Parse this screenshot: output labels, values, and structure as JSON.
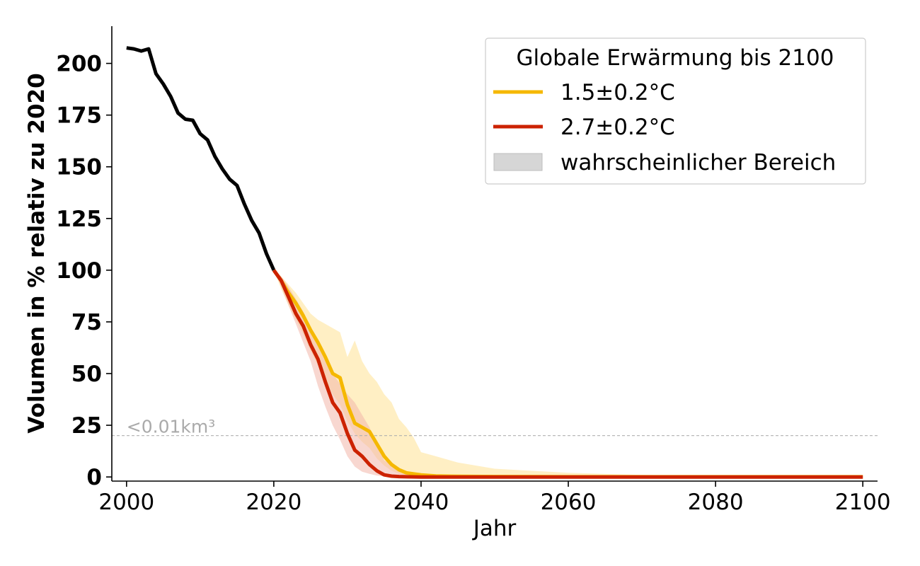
{
  "chart_data": {
    "type": "line",
    "xlabel": "Jahr",
    "ylabel": "Volumen in % relativ zu 2020",
    "xlim": [
      1998,
      2102
    ],
    "ylim": [
      -2,
      218
    ],
    "xticks": [
      2000,
      2020,
      2040,
      2060,
      2080,
      2100
    ],
    "yticks": [
      0,
      25,
      50,
      75,
      100,
      125,
      150,
      175,
      200
    ],
    "grid": false,
    "legend": {
      "title": "Globale Erwärmung bis 2100",
      "position": "top-right",
      "entries": [
        {
          "label": "1.5±0.2°C",
          "color": "#f5b800",
          "kind": "line"
        },
        {
          "label": "2.7±0.2°C",
          "color": "#cc2200",
          "kind": "line"
        },
        {
          "label": "wahrscheinlicher Bereich",
          "color": "#d6d6d6",
          "kind": "patch"
        }
      ]
    },
    "threshold": {
      "label": "<0.01km³",
      "y": 20,
      "color": "#b0b0b0"
    },
    "observed": {
      "color": "#000000",
      "x": [
        2000,
        2001,
        2002,
        2003,
        2004,
        2005,
        2006,
        2007,
        2008,
        2009,
        2010,
        2011,
        2012,
        2013,
        2014,
        2015,
        2016,
        2017,
        2018,
        2019,
        2020
      ],
      "y": [
        207.5,
        207,
        206,
        207,
        195,
        190,
        184,
        176,
        173,
        172.5,
        166,
        163,
        155,
        149,
        144,
        141,
        132,
        124,
        118,
        108,
        100
      ]
    },
    "series": [
      {
        "name": "1.5±0.2°C",
        "color": "#f5b800",
        "band_color": "#ffeab0",
        "x": [
          2020,
          2021,
          2022,
          2023,
          2024,
          2025,
          2026,
          2027,
          2028,
          2029,
          2030,
          2031,
          2032,
          2033,
          2034,
          2035,
          2036,
          2037,
          2038,
          2039,
          2040,
          2042,
          2045,
          2050,
          2060,
          2070,
          2080,
          2090,
          2100
        ],
        "y": [
          100,
          95,
          89,
          84,
          78,
          71,
          65,
          58,
          50,
          48,
          35,
          26,
          24,
          22,
          16,
          10,
          6,
          3.5,
          2,
          1.5,
          1,
          0.5,
          0.3,
          0.2,
          0.1,
          0.1,
          0.1,
          0.1,
          0.1
        ],
        "lower": [
          100,
          91,
          83,
          76,
          69,
          61,
          54,
          47,
          40,
          35,
          27,
          21,
          17,
          14,
          9,
          5.5,
          3,
          1.5,
          1,
          0.6,
          0.4,
          0.2,
          0.1,
          0,
          0,
          0,
          0,
          0,
          0
        ],
        "upper": [
          100,
          97,
          93,
          89,
          84,
          79,
          76,
          74,
          72,
          70,
          58,
          66,
          56,
          50,
          46,
          40,
          36,
          28,
          24,
          19,
          12,
          10,
          7,
          4,
          2,
          1,
          0.5,
          0.3,
          0.2
        ]
      },
      {
        "name": "2.7±0.2°C",
        "color": "#cc2200",
        "band_color": "#f2b6aa",
        "x": [
          2020,
          2021,
          2022,
          2023,
          2024,
          2025,
          2026,
          2027,
          2028,
          2029,
          2030,
          2031,
          2032,
          2033,
          2034,
          2035,
          2036,
          2037,
          2038,
          2040,
          2050,
          2060,
          2070,
          2080,
          2090,
          2100
        ],
        "y": [
          100,
          95,
          87,
          79,
          73,
          64,
          57,
          46,
          36,
          31,
          21,
          13,
          10,
          6,
          3,
          1,
          0.4,
          0.2,
          0.1,
          0,
          0,
          0,
          0,
          0,
          0,
          0
        ],
        "lower": [
          100,
          92,
          83,
          74,
          65,
          56,
          44,
          34,
          25,
          18,
          10,
          5,
          2.5,
          1.5,
          0.7,
          0.3,
          0.1,
          0,
          0,
          0,
          0,
          0,
          0,
          0,
          0,
          0
        ],
        "upper": [
          100,
          97,
          92,
          86,
          80,
          72,
          63,
          56,
          50,
          45,
          40,
          36,
          30,
          24,
          16,
          8,
          6,
          4,
          2,
          1,
          0,
          0,
          0,
          0,
          0,
          0
        ]
      }
    ]
  }
}
